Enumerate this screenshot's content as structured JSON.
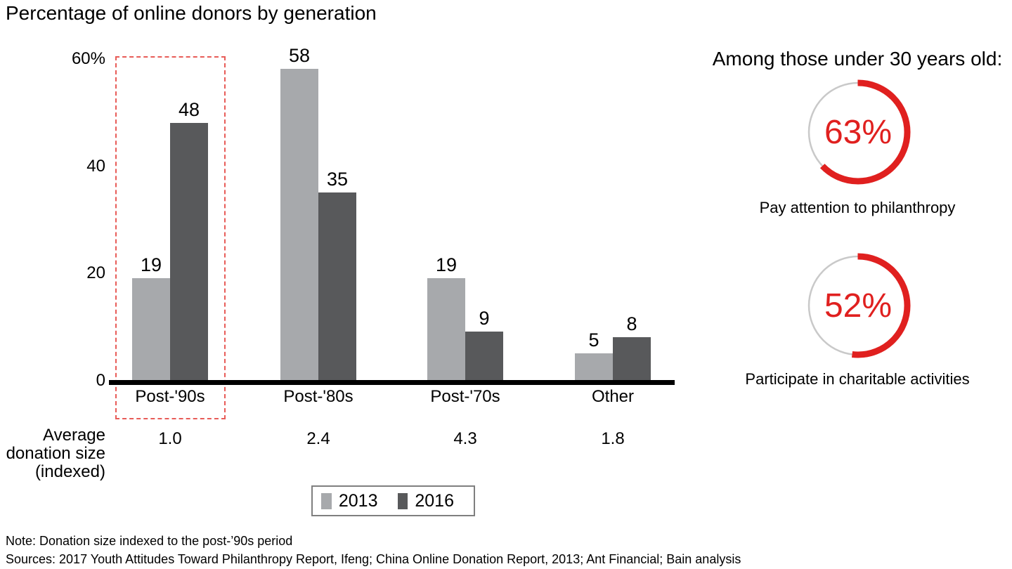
{
  "title": "Percentage of online donors by generation",
  "chart_data": {
    "type": "bar",
    "categories": [
      "Post-'90s",
      "Post-'80s",
      "Post-'70s",
      "Other"
    ],
    "series": [
      {
        "name": "2013",
        "color": "#a7a9ac",
        "values": [
          19,
          58,
          19,
          5
        ]
      },
      {
        "name": "2016",
        "color": "#58595b",
        "values": [
          48,
          35,
          9,
          8
        ]
      }
    ],
    "ylim": [
      0,
      60
    ],
    "yticks": [
      {
        "label": "60%",
        "value": 60
      },
      {
        "label": "40",
        "value": 40
      },
      {
        "label": "20",
        "value": 20
      },
      {
        "label": "0",
        "value": 0
      }
    ],
    "grid": false,
    "legend_position": "bottom",
    "highlight": {
      "category": "Post-'90s",
      "style": "red-dashed-box"
    },
    "avg_row": {
      "label": "Average donation size (indexed)",
      "values": [
        "1.0",
        "2.4",
        "4.3",
        "1.8"
      ]
    }
  },
  "right_panel": {
    "heading": "Among those under 30 years old:",
    "donuts": [
      {
        "value": 63,
        "label": "63%",
        "caption": "Pay attention to philanthropy"
      },
      {
        "value": 52,
        "label": "52%",
        "caption": "Participate in charitable activities"
      }
    ]
  },
  "footer": {
    "note": "Note: Donation size indexed to the post-’90s period",
    "sources": "Sources: 2017 Youth Attitudes Toward Philanthropy Report, Ifeng; China Online Donation Report, 2013; Ant Financial; Bain analysis"
  },
  "colors": {
    "bar_2013": "#a7a9ac",
    "bar_2016": "#58595b",
    "accent_red": "#e0201f",
    "highlight_dash": "#e85c58",
    "ring_gray": "#c9c9c9",
    "axis_black": "#000000"
  }
}
